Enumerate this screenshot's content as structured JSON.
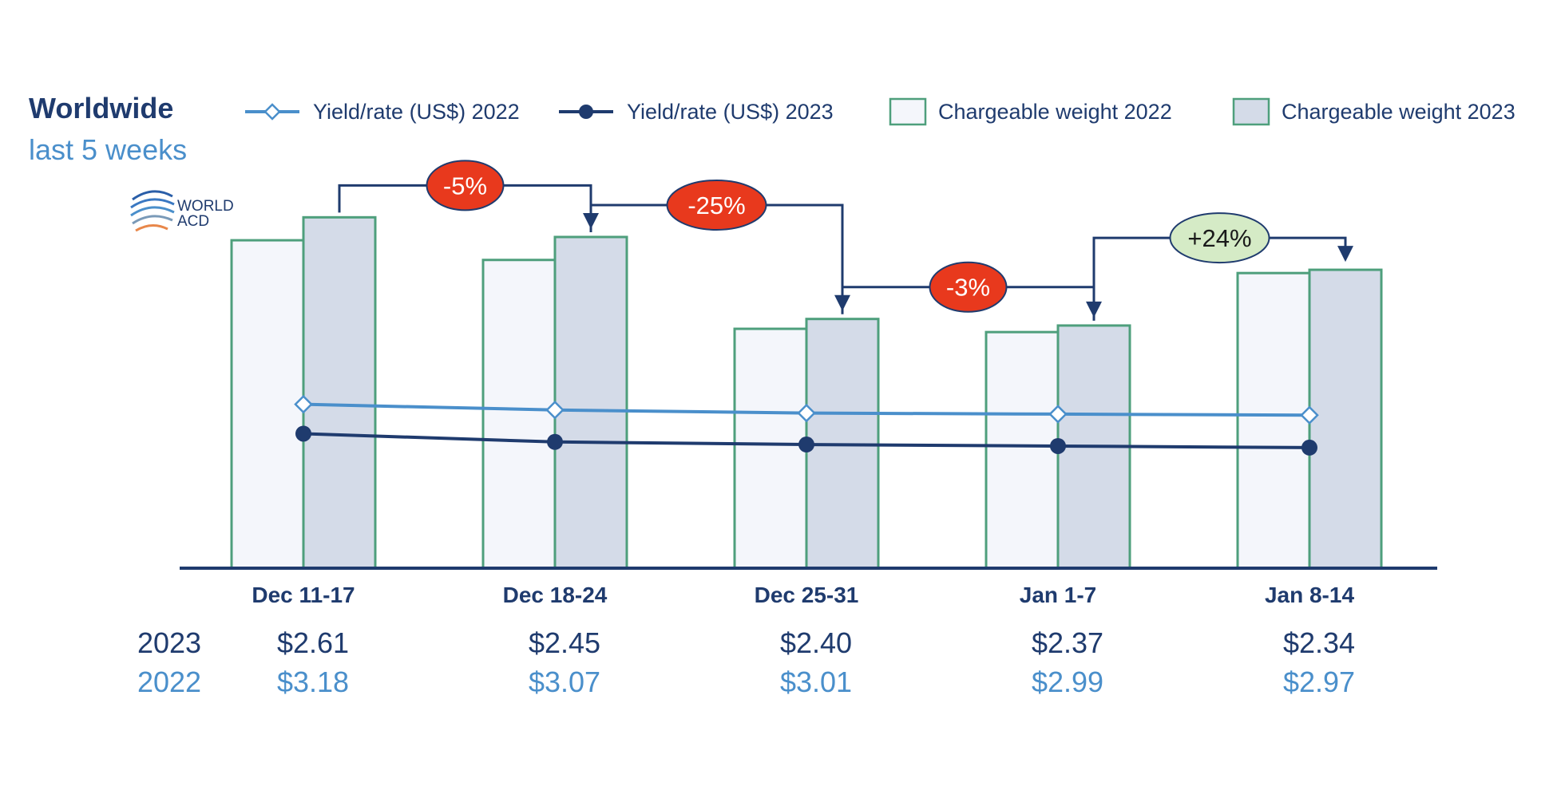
{
  "header": {
    "title": "Worldwide",
    "subtitle": "last 5 weeks",
    "logo_text": [
      "WORLD",
      "ACD"
    ]
  },
  "legend": [
    {
      "label": "Yield/rate (US$) 2022",
      "kind": "line-diamond",
      "color": "#4a8fcb"
    },
    {
      "label": "Yield/rate (US$) 2023",
      "kind": "line-dot",
      "color": "#1f3b6e"
    },
    {
      "label": "Chargeable weight 2022",
      "kind": "bar",
      "fill": "#f4f6fb",
      "stroke": "#4e9f7c"
    },
    {
      "label": "Chargeable weight 2023",
      "kind": "bar",
      "fill": "#d4dbe8",
      "stroke": "#4e9f7c"
    }
  ],
  "chart_data": {
    "type": "bar",
    "categories": [
      "Dec 11-17",
      "Dec 18-24",
      "Dec 25-31",
      "Jan 1-7",
      "Jan 8-14"
    ],
    "bar_series": [
      {
        "name": "Chargeable weight 2022",
        "values": [
          100,
          94,
          73,
          72,
          90
        ]
      },
      {
        "name": "Chargeable weight 2023",
        "values": [
          107,
          101,
          76,
          74,
          91
        ]
      }
    ],
    "line_series": [
      {
        "name": "Yield/rate (US$) 2022",
        "values": [
          3.18,
          3.07,
          3.01,
          2.99,
          2.97
        ]
      },
      {
        "name": "Yield/rate (US$) 2023",
        "values": [
          2.61,
          2.45,
          2.4,
          2.37,
          2.34
        ]
      }
    ],
    "changes": [
      {
        "from": 0,
        "to": 1,
        "label": "-5%",
        "color": "#e8391d",
        "text_color": "#ffffff"
      },
      {
        "from": 1,
        "to": 2,
        "label": "-25%",
        "color": "#e8391d",
        "text_color": "#ffffff"
      },
      {
        "from": 2,
        "to": 3,
        "label": "-3%",
        "color": "#e8391d",
        "text_color": "#ffffff"
      },
      {
        "from": 3,
        "to": 4,
        "label": "+24%",
        "color": "#d5ebc6",
        "text_color": "#1a1a1a"
      }
    ],
    "value_table": [
      {
        "year": "2023",
        "values": [
          "$2.61",
          "$2.45",
          "$2.40",
          "$2.37",
          "$2.34"
        ],
        "color": "#1f3b6e"
      },
      {
        "year": "2022",
        "values": [
          "$3.18",
          "$3.07",
          "$3.01",
          "$2.99",
          "$2.97"
        ],
        "color": "#4a8fcb"
      }
    ],
    "ylim_bars": [
      0,
      110
    ],
    "ylim_lines": [
      0,
      7
    ],
    "colors": {
      "axis": "#1f3b6e",
      "arrow": "#1f3b6e"
    }
  }
}
